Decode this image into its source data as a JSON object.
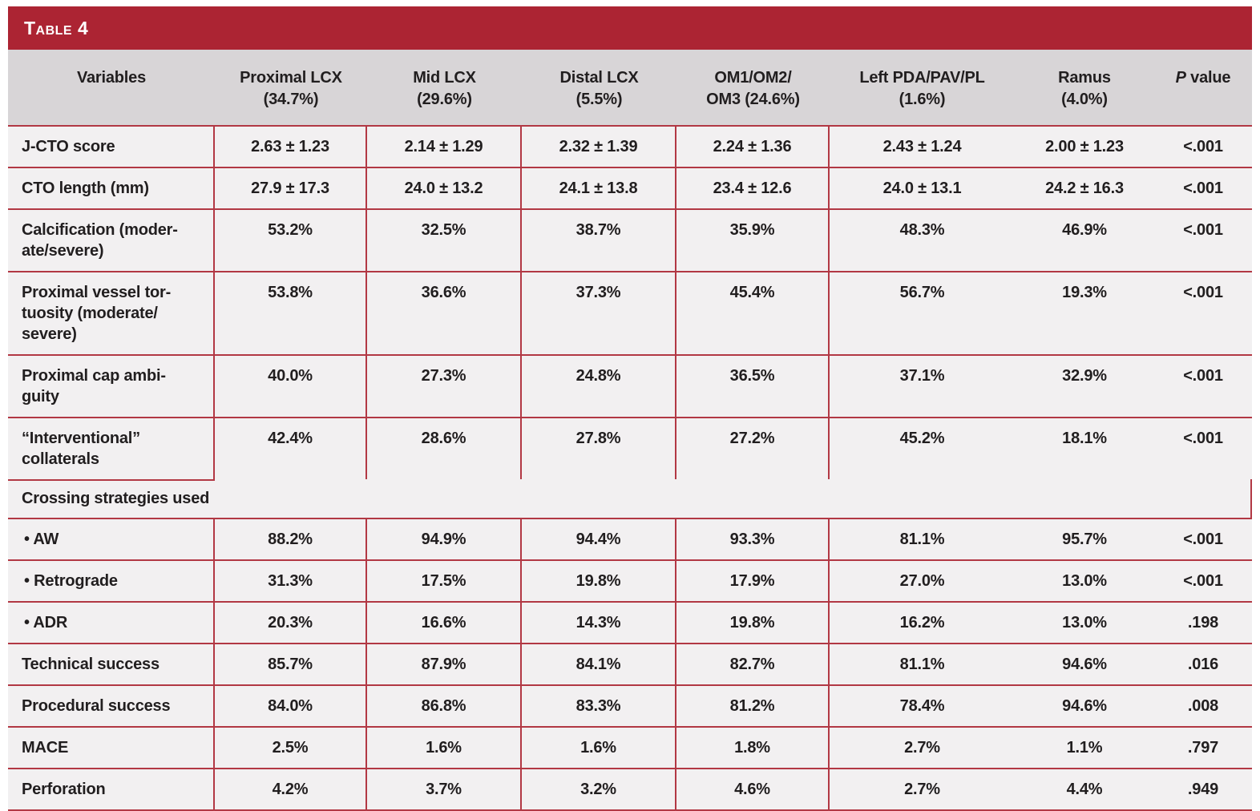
{
  "colors": {
    "bar_red": "#AC2433",
    "line_red": "#B23844",
    "header_bg": "#D8D5D7",
    "cell_bg": "#F2F0F1",
    "text": "#211E1F"
  },
  "table": {
    "title": "Table 4",
    "columns": [
      {
        "line1": "Variables"
      },
      {
        "line1": "Proximal LCX",
        "line2": "(34.7%)"
      },
      {
        "line1": "Mid LCX",
        "line2": "(29.6%)"
      },
      {
        "line1": "Distal LCX",
        "line2": "(5.5%)"
      },
      {
        "line1": "OM1/OM2/",
        "line2": "OM3 (24.6%)"
      },
      {
        "line1": "Left PDA/PAV/PL",
        "line2": "(1.6%)"
      },
      {
        "line1": "Ramus",
        "line2": "(4.0%)"
      },
      {
        "italic": "P",
        "line1": " value"
      }
    ],
    "rows": [
      {
        "label_lines": [
          "J-CTO score"
        ],
        "values": [
          "2.63 ± 1.23",
          "2.14 ± 1.29",
          "2.32 ± 1.39",
          "2.24 ± 1.36",
          "2.43 ± 1.24",
          "2.00 ± 1.23",
          "<.001"
        ]
      },
      {
        "label_lines": [
          "CTO length (mm)"
        ],
        "values": [
          "27.9 ± 17.3",
          "24.0 ± 13.2",
          "24.1 ± 13.8",
          "23.4 ± 12.6",
          "24.0 ± 13.1",
          "24.2 ± 16.3",
          "<.001"
        ]
      },
      {
        "label_lines": [
          "Calcification (moder-",
          "ate/severe)"
        ],
        "values": [
          "53.2%",
          "32.5%",
          "38.7%",
          "35.9%",
          "48.3%",
          "46.9%",
          "<.001"
        ]
      },
      {
        "label_lines": [
          "Proximal vessel tor-",
          "tuosity (moderate/",
          "severe)"
        ],
        "values": [
          "53.8%",
          "36.6%",
          "37.3%",
          "45.4%",
          "56.7%",
          "19.3%",
          "<.001"
        ]
      },
      {
        "label_lines": [
          "Proximal cap ambi-",
          "guity"
        ],
        "values": [
          "40.0%",
          "27.3%",
          "24.8%",
          "36.5%",
          "37.1%",
          "32.9%",
          "<.001"
        ]
      },
      {
        "label_lines": [
          "“Interventional”",
          "collaterals"
        ],
        "partial_bottom": true,
        "values": [
          "42.4%",
          "28.6%",
          "27.8%",
          "27.2%",
          "45.2%",
          "18.1%",
          "<.001"
        ]
      },
      {
        "section": true,
        "label_lines": [
          "Crossing strategies used"
        ]
      },
      {
        "label_lines": [
          "• AW"
        ],
        "indent": true,
        "values": [
          "88.2%",
          "94.9%",
          "94.4%",
          "93.3%",
          "81.1%",
          "95.7%",
          "<.001"
        ]
      },
      {
        "label_lines": [
          "• Retrograde"
        ],
        "indent": true,
        "values": [
          "31.3%",
          "17.5%",
          "19.8%",
          "17.9%",
          "27.0%",
          "13.0%",
          "<.001"
        ]
      },
      {
        "label_lines": [
          "• ADR"
        ],
        "indent": true,
        "values": [
          "20.3%",
          "16.6%",
          "14.3%",
          "19.8%",
          "16.2%",
          "13.0%",
          ".198"
        ]
      },
      {
        "label_lines": [
          "Technical success"
        ],
        "values": [
          "85.7%",
          "87.9%",
          "84.1%",
          "82.7%",
          "81.1%",
          "94.6%",
          ".016"
        ]
      },
      {
        "label_lines": [
          "Procedural success"
        ],
        "values": [
          "84.0%",
          "86.8%",
          "83.3%",
          "81.2%",
          "78.4%",
          "94.6%",
          ".008"
        ]
      },
      {
        "label_lines": [
          "MACE"
        ],
        "values": [
          "2.5%",
          "1.6%",
          "1.6%",
          "1.8%",
          "2.7%",
          "1.1%",
          ".797"
        ]
      },
      {
        "label_lines": [
          "Perforation"
        ],
        "values": [
          "4.2%",
          "3.7%",
          "3.2%",
          "4.6%",
          "2.7%",
          "4.4%",
          ".949"
        ]
      }
    ]
  }
}
